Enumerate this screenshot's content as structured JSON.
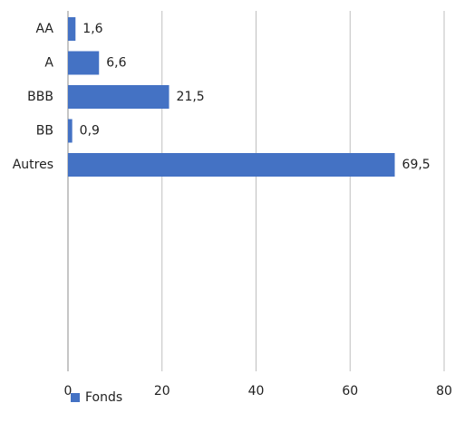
{
  "chart_data": {
    "type": "bar",
    "orientation": "horizontal",
    "categories": [
      "AA",
      "A",
      "BBB",
      "BB",
      "Autres"
    ],
    "series": [
      {
        "name": "Fonds",
        "values": [
          1.6,
          6.6,
          21.5,
          0.9,
          69.5
        ],
        "labels": [
          "1,6",
          "6,6",
          "21,5",
          "0,9",
          "69,5"
        ],
        "color": "#4472c4"
      }
    ],
    "xlim": [
      0,
      80
    ],
    "xticks": [
      0,
      20,
      40,
      60,
      80
    ],
    "grid": true,
    "legend_position": "bottom-left"
  }
}
